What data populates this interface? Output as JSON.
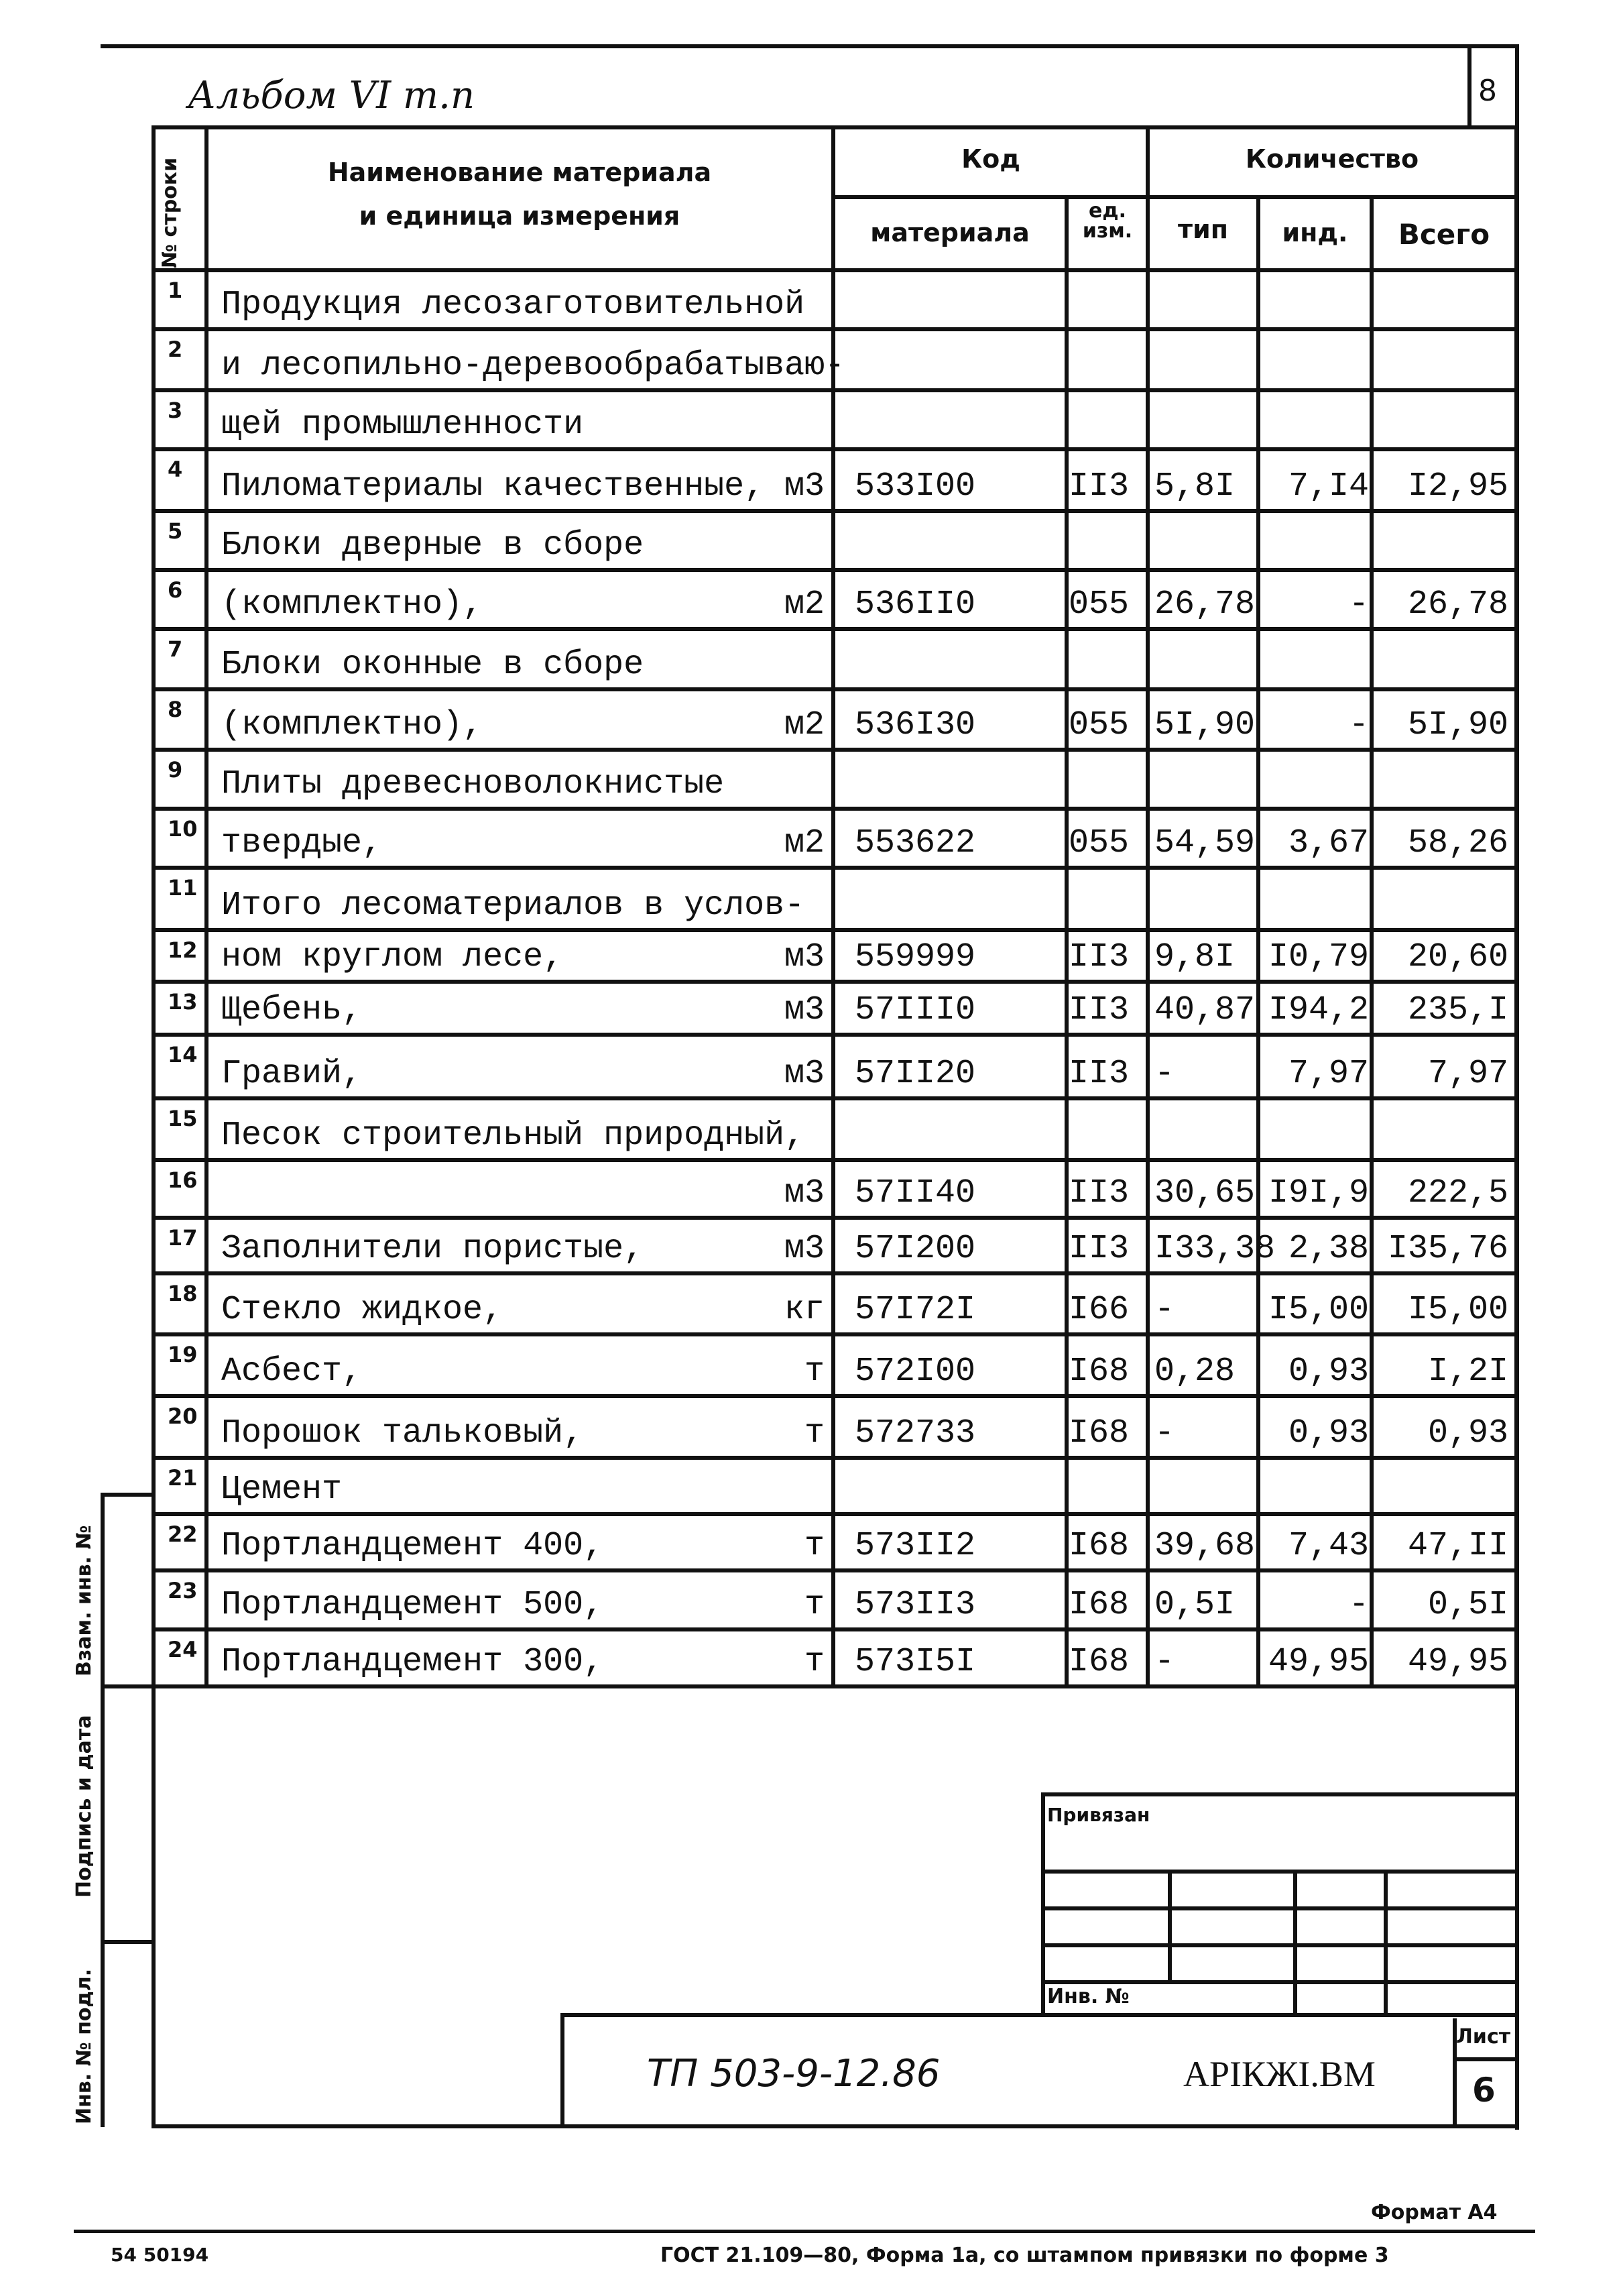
{
  "album_note": "Альбом VI т.п",
  "page_number": "8",
  "header": {
    "row_no": "№ строки",
    "name": "Наименование материала",
    "name2": "и единица измерения",
    "code": "Код",
    "code_material": "материала",
    "code_unit": "ед. изм.",
    "quantity": "Количество",
    "qty_type": "тип",
    "qty_ind": "инд.",
    "qty_total": "Всего"
  },
  "rows": [
    {
      "n": "1",
      "name": "Продукция лесозаготовительной",
      "unit": "",
      "code": "",
      "ed": "",
      "tip": "",
      "ind": "",
      "total": ""
    },
    {
      "n": "2",
      "name": "и лесопильно-деревообрабатываю-",
      "unit": "",
      "code": "",
      "ed": "",
      "tip": "",
      "ind": "",
      "total": ""
    },
    {
      "n": "3",
      "name": "щей промышленности",
      "unit": "",
      "code": "",
      "ed": "",
      "tip": "",
      "ind": "",
      "total": ""
    },
    {
      "n": "4",
      "name": "Пиломатериалы качественные,",
      "unit": "м3",
      "code": "533I00",
      "ed": "II3",
      "tip": "5,8I",
      "ind": "7,I4",
      "total": "I2,95"
    },
    {
      "n": "5",
      "name": "Блоки дверные в сборе",
      "unit": "",
      "code": "",
      "ed": "",
      "tip": "",
      "ind": "",
      "total": ""
    },
    {
      "n": "6",
      "name": "(комплектно),",
      "unit": "м2",
      "code": "536II0",
      "ed": "055",
      "tip": "26,78",
      "ind": "-",
      "total": "26,78"
    },
    {
      "n": "7",
      "name": "Блоки оконные в сборе",
      "unit": "",
      "code": "",
      "ed": "",
      "tip": "",
      "ind": "",
      "total": ""
    },
    {
      "n": "8",
      "name": "(комплектно),",
      "unit": "м2",
      "code": "536I30",
      "ed": "055",
      "tip": "5I,90",
      "ind": "-",
      "total": "5I,90"
    },
    {
      "n": "9",
      "name": "Плиты древесноволокнистые",
      "unit": "",
      "code": "",
      "ed": "",
      "tip": "",
      "ind": "",
      "total": ""
    },
    {
      "n": "10",
      "name": "твердые,",
      "unit": "м2",
      "code": "553622",
      "ed": "055",
      "tip": "54,59",
      "ind": "3,67",
      "total": "58,26"
    },
    {
      "n": "11",
      "name": "Итого лесоматериалов в услов-",
      "unit": "",
      "code": "",
      "ed": "",
      "tip": "",
      "ind": "",
      "total": ""
    },
    {
      "n": "12",
      "name": "ном круглом лесе,",
      "unit": "м3",
      "code": "559999",
      "ed": "II3",
      "tip": "9,8I",
      "ind": "I0,79",
      "total": "20,60"
    },
    {
      "n": "13",
      "name": "Щебень,",
      "unit": "м3",
      "code": "57III0",
      "ed": "II3",
      "tip": "40,87",
      "ind": "I94,2",
      "total": "235,I"
    },
    {
      "n": "14",
      "name": "Гравий,",
      "unit": "м3",
      "code": "57II20",
      "ed": "II3",
      "tip": "-",
      "ind": "7,97",
      "total": "7,97"
    },
    {
      "n": "15",
      "name": "Песок строительный природный,",
      "unit": "",
      "code": "",
      "ed": "",
      "tip": "",
      "ind": "",
      "total": ""
    },
    {
      "n": "16",
      "name": "",
      "unit": "м3",
      "code": "57II40",
      "ed": "II3",
      "tip": "30,65",
      "ind": "I9I,9",
      "total": "222,5"
    },
    {
      "n": "17",
      "name": "Заполнители пористые,",
      "unit": "м3",
      "code": "57I200",
      "ed": "II3",
      "tip": "I33,38",
      "ind": "2,38",
      "total": "I35,76"
    },
    {
      "n": "18",
      "name": "Стекло жидкое,",
      "unit": "кг",
      "code": "57I72I",
      "ed": "I66",
      "tip": "-",
      "ind": "I5,00",
      "total": "I5,00"
    },
    {
      "n": "19",
      "name": "Асбест,",
      "unit": "т",
      "code": "572I00",
      "ed": "I68",
      "tip": "0,28",
      "ind": "0,93",
      "total": "I,2I"
    },
    {
      "n": "20",
      "name": "Порошок тальковый,",
      "unit": "т",
      "code": "572733",
      "ed": "I68",
      "tip": "-",
      "ind": "0,93",
      "total": "0,93"
    },
    {
      "n": "21",
      "name": "Цемент",
      "unit": "",
      "code": "",
      "ed": "",
      "tip": "",
      "ind": "",
      "total": ""
    },
    {
      "n": "22",
      "name": "Портландцемент 400,",
      "unit": "т",
      "code": "573II2",
      "ed": "I68",
      "tip": "39,68",
      "ind": "7,43",
      "total": "47,II"
    },
    {
      "n": "23",
      "name": "Портландцемент 500,",
      "unit": "т",
      "code": "573II3",
      "ed": "I68",
      "tip": "0,5I",
      "ind": "-",
      "total": "0,5I"
    },
    {
      "n": "24",
      "name": "Портландцемент 300,",
      "unit": "т",
      "code": "573I5I",
      "ed": "I68",
      "tip": "-",
      "ind": "49,95",
      "total": "49,95"
    }
  ],
  "side_labels": {
    "inv_no": "Инв. № подл.",
    "signature_date": "Подпись и дата",
    "replace_inv": "Взам. инв. №"
  },
  "stamp": {
    "attached": "Привязан",
    "inv_no": "Инв. №",
    "designation": "ТП 503-9-12.86",
    "code": "АРIКЖI.ВМ",
    "sheet_label": "Лист",
    "sheet_value": "6"
  },
  "footer": {
    "format": "Формат А4",
    "left_code": "54 50194",
    "gost": "ГОСТ 21.109—80, Форма 1а, со штампом привязки по форме 3"
  }
}
